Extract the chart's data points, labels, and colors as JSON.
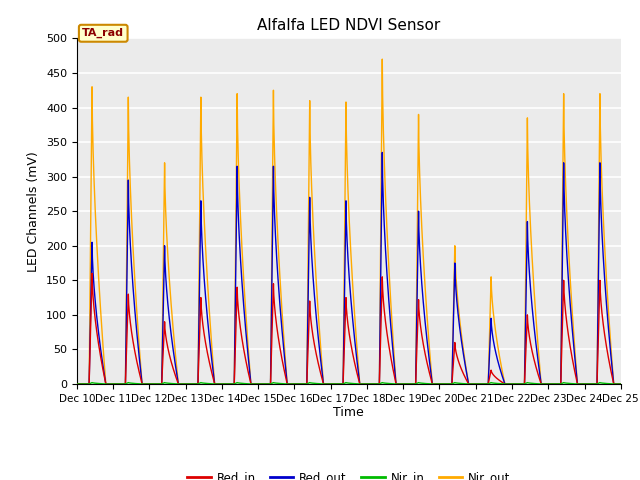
{
  "title": "Alfalfa LED NDVI Sensor",
  "xlabel": "Time",
  "ylabel": "LED Channels (mV)",
  "ylim": [
    0,
    500
  ],
  "bg_color": "#ebebeb",
  "grid_color": "white",
  "legend_label": "TA_rad",
  "series": {
    "Red_in": {
      "color": "#dd0000",
      "peak_vals": [
        160,
        130,
        90,
        125,
        140,
        145,
        120,
        125,
        155,
        122,
        60,
        20,
        100,
        150,
        150
      ]
    },
    "Red_out": {
      "color": "#0000cc",
      "peak_vals": [
        205,
        295,
        200,
        265,
        315,
        315,
        270,
        265,
        335,
        250,
        175,
        95,
        235,
        320,
        320
      ]
    },
    "Nir_in": {
      "color": "#00bb00",
      "peak_vals": [
        2,
        2,
        2,
        2,
        2,
        2,
        2,
        2,
        2,
        2,
        2,
        2,
        2,
        2,
        2
      ]
    },
    "Nir_out": {
      "color": "#ffaa00",
      "peak_vals": [
        430,
        415,
        320,
        415,
        420,
        425,
        410,
        408,
        470,
        390,
        200,
        155,
        385,
        420,
        420
      ]
    }
  },
  "days": [
    "Dec 10",
    "Dec 11",
    "Dec 12",
    "Dec 13",
    "Dec 14",
    "Dec 15",
    "Dec 16",
    "Dec 17",
    "Dec 18",
    "Dec 19",
    "Dec 20",
    "Dec 21",
    "Dec 22",
    "Dec 23",
    "Dec 24",
    "Dec 25"
  ],
  "n_days": 15,
  "pts_per_day": 200,
  "spike_rise": 0.05,
  "spike_fall": 0.35
}
